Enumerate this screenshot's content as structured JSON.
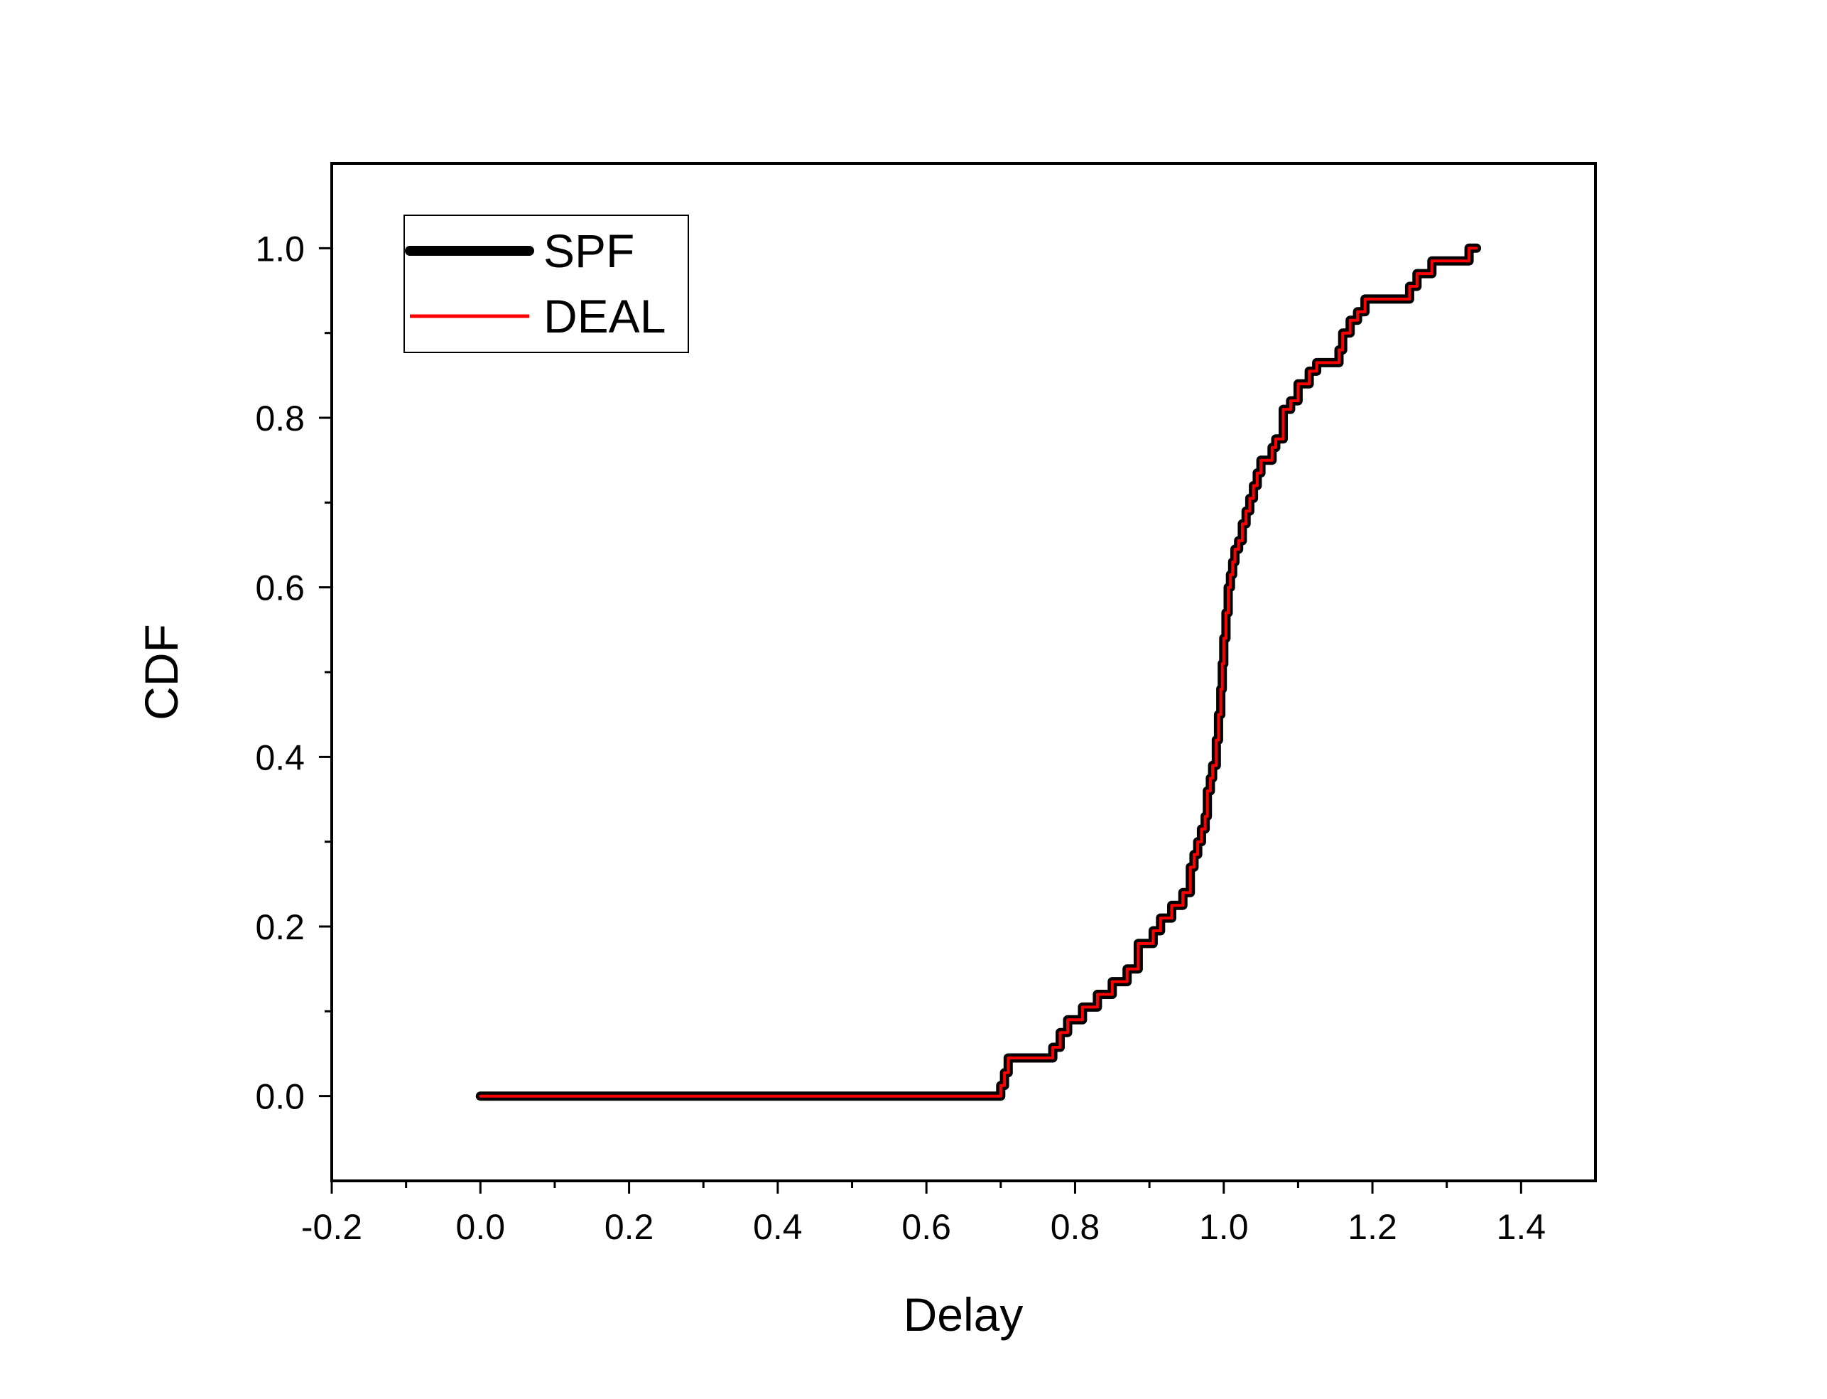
{
  "chart_data": {
    "type": "line",
    "xlabel": "Delay",
    "ylabel": "CDF",
    "xlim": [
      -0.2,
      1.5
    ],
    "ylim": [
      -0.1,
      1.1
    ],
    "x_ticks": [
      "-0.2",
      "0.0",
      "0.2",
      "0.4",
      "0.6",
      "0.8",
      "1.0",
      "1.2",
      "1.4"
    ],
    "y_ticks": [
      "0.0",
      "0.2",
      "0.4",
      "0.6",
      "0.8",
      "1.0"
    ],
    "grid": false,
    "legend_position": "top-left",
    "series": [
      {
        "name": "SPF",
        "color": "#000000",
        "style": "thick step line",
        "x": [
          0.0,
          0.695,
          0.7,
          0.705,
          0.71,
          0.76,
          0.77,
          0.78,
          0.79,
          0.81,
          0.82,
          0.83,
          0.85,
          0.86,
          0.87,
          0.885,
          0.895,
          0.905,
          0.915,
          0.93,
          0.94,
          0.945,
          0.955,
          0.96,
          0.965,
          0.97,
          0.975,
          0.978,
          0.982,
          0.985,
          0.99,
          0.993,
          0.996,
          0.998,
          1.0,
          1.003,
          1.006,
          1.009,
          1.012,
          1.015,
          1.02,
          1.025,
          1.03,
          1.035,
          1.04,
          1.045,
          1.05,
          1.058,
          1.065,
          1.07,
          1.08,
          1.09,
          1.1,
          1.115,
          1.125,
          1.13,
          1.15,
          1.155,
          1.16,
          1.17,
          1.18,
          1.19,
          1.25,
          1.26,
          1.28,
          1.33,
          1.34
        ],
        "y": [
          0.0,
          0.0,
          0.0125,
          0.0275,
          0.045,
          0.045,
          0.0575,
          0.075,
          0.09,
          0.105,
          0.105,
          0.12,
          0.135,
          0.135,
          0.15,
          0.18,
          0.18,
          0.195,
          0.21,
          0.225,
          0.225,
          0.24,
          0.27,
          0.285,
          0.3,
          0.315,
          0.33,
          0.36,
          0.375,
          0.39,
          0.42,
          0.45,
          0.48,
          0.51,
          0.54,
          0.57,
          0.6,
          0.615,
          0.63,
          0.645,
          0.655,
          0.675,
          0.69,
          0.705,
          0.72,
          0.735,
          0.75,
          0.75,
          0.765,
          0.775,
          0.81,
          0.82,
          0.84,
          0.855,
          0.865,
          0.865,
          0.865,
          0.88,
          0.9,
          0.915,
          0.925,
          0.94,
          0.955,
          0.97,
          0.985,
          1.0,
          1.0
        ]
      },
      {
        "name": "DEAL",
        "color": "#ff0000",
        "style": "thin step line",
        "x": [
          0.0,
          0.695,
          0.7,
          0.705,
          0.71,
          0.76,
          0.77,
          0.78,
          0.79,
          0.81,
          0.82,
          0.83,
          0.85,
          0.86,
          0.87,
          0.885,
          0.895,
          0.905,
          0.915,
          0.93,
          0.94,
          0.945,
          0.955,
          0.96,
          0.965,
          0.97,
          0.975,
          0.978,
          0.982,
          0.985,
          0.99,
          0.993,
          0.996,
          0.998,
          1.0,
          1.003,
          1.006,
          1.009,
          1.012,
          1.015,
          1.02,
          1.025,
          1.03,
          1.035,
          1.04,
          1.045,
          1.05,
          1.058,
          1.065,
          1.07,
          1.08,
          1.09,
          1.1,
          1.115,
          1.125,
          1.13,
          1.15,
          1.155,
          1.16,
          1.17,
          1.18,
          1.19,
          1.25,
          1.26,
          1.28,
          1.33,
          1.34
        ],
        "y": [
          0.0,
          0.0,
          0.0125,
          0.0275,
          0.045,
          0.045,
          0.0575,
          0.075,
          0.09,
          0.105,
          0.105,
          0.12,
          0.135,
          0.135,
          0.15,
          0.18,
          0.18,
          0.195,
          0.21,
          0.225,
          0.225,
          0.24,
          0.27,
          0.285,
          0.3,
          0.315,
          0.33,
          0.36,
          0.375,
          0.39,
          0.42,
          0.45,
          0.48,
          0.51,
          0.54,
          0.57,
          0.6,
          0.615,
          0.63,
          0.645,
          0.655,
          0.675,
          0.69,
          0.705,
          0.72,
          0.735,
          0.75,
          0.75,
          0.765,
          0.775,
          0.81,
          0.82,
          0.84,
          0.855,
          0.865,
          0.865,
          0.865,
          0.88,
          0.9,
          0.915,
          0.925,
          0.94,
          0.955,
          0.97,
          0.985,
          1.0,
          1.0
        ]
      }
    ]
  }
}
